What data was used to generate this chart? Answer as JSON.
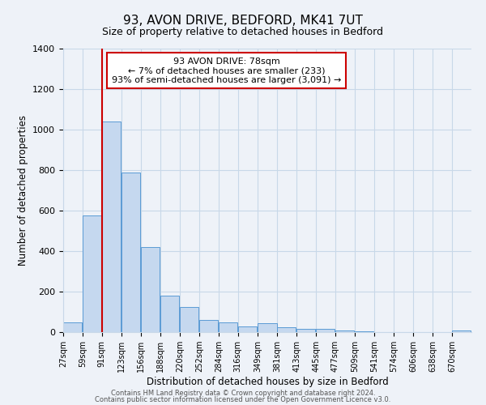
{
  "title": "93, AVON DRIVE, BEDFORD, MK41 7UT",
  "subtitle": "Size of property relative to detached houses in Bedford",
  "xlabel": "Distribution of detached houses by size in Bedford",
  "ylabel": "Number of detached properties",
  "bar_labels": [
    "27sqm",
    "59sqm",
    "91sqm",
    "123sqm",
    "156sqm",
    "188sqm",
    "220sqm",
    "252sqm",
    "284sqm",
    "316sqm",
    "349sqm",
    "381sqm",
    "413sqm",
    "445sqm",
    "477sqm",
    "509sqm",
    "541sqm",
    "574sqm",
    "606sqm",
    "638sqm",
    "670sqm"
  ],
  "bar_values": [
    50,
    575,
    1040,
    790,
    420,
    180,
    125,
    62,
    50,
    30,
    45,
    25,
    18,
    15,
    10,
    5,
    0,
    0,
    0,
    0,
    10
  ],
  "bar_color": "#c5d8ef",
  "bar_edge_color": "#5b9bd5",
  "ylim": [
    0,
    1400
  ],
  "yticks": [
    0,
    200,
    400,
    600,
    800,
    1000,
    1200,
    1400
  ],
  "red_line_x": 91,
  "bin_width": 32,
  "annotation_title": "93 AVON DRIVE: 78sqm",
  "annotation_line1": "← 7% of detached houses are smaller (233)",
  "annotation_line2": "93% of semi-detached houses are larger (3,091) →",
  "annotation_box_color": "#ffffff",
  "annotation_box_edge": "#cc0000",
  "footer1": "Contains HM Land Registry data © Crown copyright and database right 2024.",
  "footer2": "Contains public sector information licensed under the Open Government Licence v3.0.",
  "bg_color": "#eef2f8",
  "grid_color": "#c8d8e8"
}
